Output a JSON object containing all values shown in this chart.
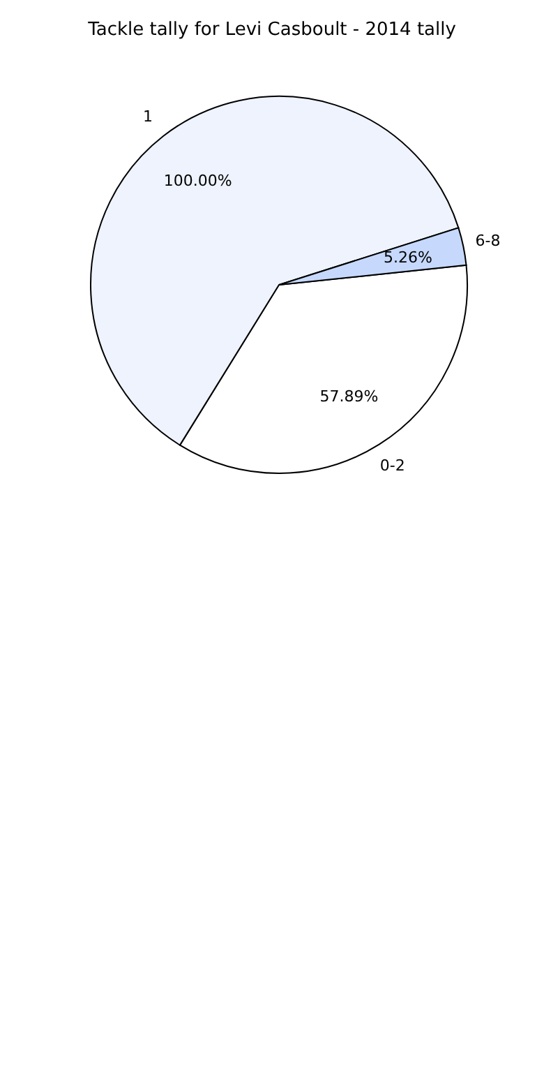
{
  "chart_data": {
    "type": "pie",
    "title": "Tackle tally for Levi Casboult - 2014 tally",
    "categories": [
      "0-2",
      "1",
      "6-8"
    ],
    "values": [
      57.89,
      100.0,
      5.26
    ],
    "value_labels": [
      "57.89%",
      "100.00%",
      "5.26%"
    ],
    "colors": [
      "#ffffff",
      "#eef3fd",
      "#c6d9fd"
    ],
    "legend": false
  }
}
